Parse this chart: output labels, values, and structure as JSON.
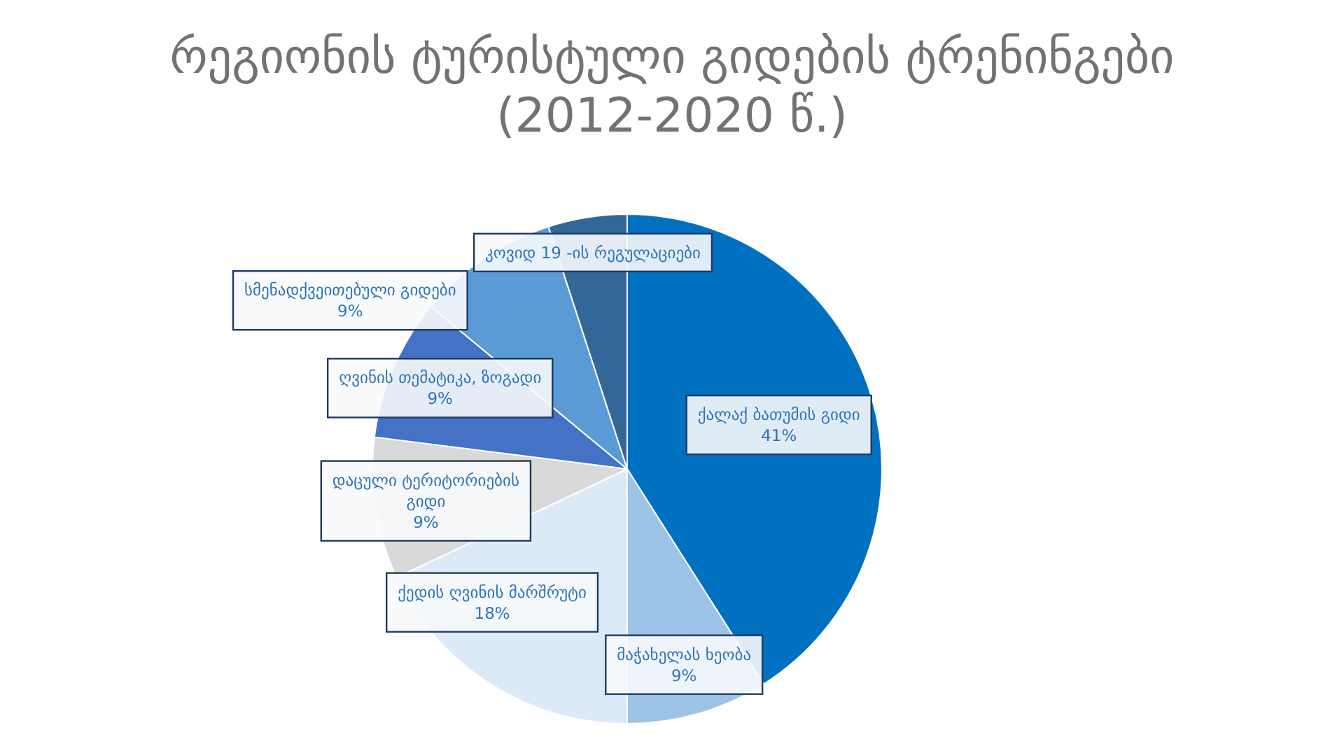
{
  "chart_data": {
    "type": "pie",
    "title": "რეგიონის ტურისტული გიდების ტრენინგები (2012-2020 წ.)",
    "categories": [
      "ქალაქ ბათუმის გიდი",
      "მაჭახელას ხეობა",
      "ქედის ღვინის მარშრუტი",
      "დაცული ტერიტორიების გიდი",
      "ღვინის თემატიკა, ზოგადი",
      "სმენადქვეითებული გიდები",
      "კოვიდ 19 -ის რეგულაციები"
    ],
    "values": [
      41,
      9,
      18,
      9,
      9,
      9,
      5
    ],
    "value_labels": [
      "41%",
      "9%",
      "18%",
      "9%",
      "9%",
      "9%",
      null
    ],
    "colors": [
      "#0070c0",
      "#9dc3e6",
      "#dce9f6",
      "#d9d9d9",
      "#4472c4",
      "#5b9bd5",
      "#336699"
    ]
  }
}
